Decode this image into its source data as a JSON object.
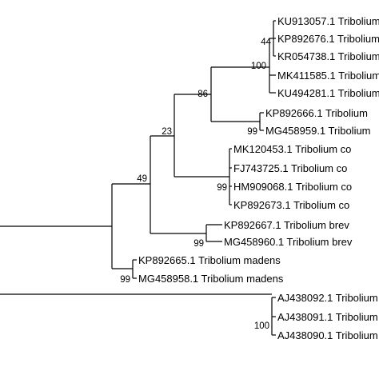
{
  "tree": {
    "leaves": [
      "KU913057.1 Tribolium",
      "KP892676.1 Tribolium",
      "KR054738.1 Tribolium",
      "MK411585.1 Tribolium",
      "KU494281.1 Tribolium",
      "KP892666.1 Tribolium",
      "MG458959.1 Tribolium",
      "MK120453.1 Tribolium co",
      "FJ743725.1 Tribolium co",
      "HM909068.1 Tribolium co",
      "KP892673.1 Tribolium co",
      "KP892667.1 Tribolium brev",
      "MG458960.1 Tribolium brev",
      "KP892665.1 Tribolium madens",
      "MG458958.1 Tribolium madens",
      "AJ438092.1 Tribolium",
      "AJ438091.1 Tribolium",
      "AJ438090.1 Tribolium"
    ],
    "support_values": [
      "44",
      "100",
      "86",
      "99",
      "23",
      "99",
      "49",
      "99",
      "99",
      "100"
    ]
  }
}
